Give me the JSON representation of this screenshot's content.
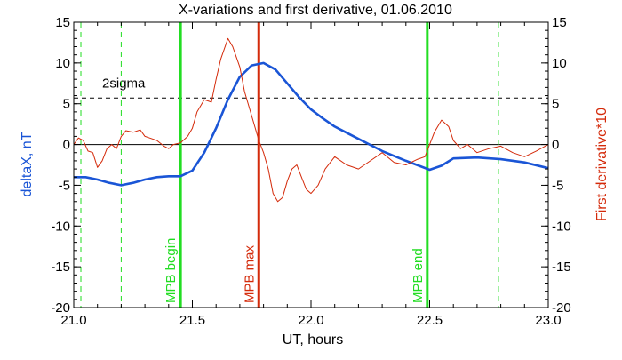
{
  "chart_data": {
    "type": "line",
    "title": "X-variations and first derivative, 01.06.2010",
    "xlabel": "UT, hours",
    "ylabel_left": "deltaX, nT",
    "ylabel_right": "First derivative*10",
    "xlim": [
      21.0,
      23.0
    ],
    "ylim": [
      -20,
      15
    ],
    "ylim_right": [
      -20,
      15
    ],
    "x_ticks": [
      21.0,
      21.5,
      22.0,
      22.5,
      23.0
    ],
    "x_tick_labels": [
      "21.0",
      "21.5",
      "22.0",
      "22.5",
      "23.0"
    ],
    "y_ticks": [
      -20,
      -15,
      -10,
      -5,
      0,
      5,
      10,
      15
    ],
    "y_tick_labels": [
      "-20",
      "-15",
      "-10",
      "-5",
      "0",
      "5",
      "10",
      "15"
    ],
    "grid": false,
    "colors": {
      "deltaX": "#1a55d6",
      "derivative": "#d42a0a",
      "mpb_edge": "#22dd22",
      "mpb_max": "#d42a0a",
      "reference": "#000000"
    },
    "series": [
      {
        "key": "deltaX",
        "axis": "left",
        "x": [
          21.0,
          21.05,
          21.1,
          21.15,
          21.2,
          21.25,
          21.3,
          21.35,
          21.4,
          21.45,
          21.5,
          21.55,
          21.6,
          21.65,
          21.7,
          21.75,
          21.8,
          21.85,
          21.9,
          21.95,
          22.0,
          22.05,
          22.1,
          22.2,
          22.3,
          22.4,
          22.5,
          22.55,
          22.6,
          22.7,
          22.8,
          22.9,
          23.0
        ],
        "values": [
          -4.0,
          -4.0,
          -4.3,
          -4.7,
          -5.0,
          -4.7,
          -4.3,
          -4.0,
          -3.9,
          -3.9,
          -3.2,
          -1.0,
          2.0,
          5.5,
          8.3,
          9.7,
          10.0,
          9.2,
          7.5,
          5.8,
          4.3,
          3.2,
          2.2,
          0.7,
          -0.8,
          -2.0,
          -3.1,
          -2.6,
          -1.7,
          -1.6,
          -1.8,
          -2.2,
          -2.9
        ]
      },
      {
        "key": "derivative",
        "axis": "right",
        "x": [
          21.0,
          21.02,
          21.04,
          21.06,
          21.08,
          21.1,
          21.12,
          21.14,
          21.16,
          21.18,
          21.2,
          21.22,
          21.25,
          21.28,
          21.3,
          21.32,
          21.35,
          21.38,
          21.4,
          21.42,
          21.45,
          21.48,
          21.5,
          21.52,
          21.55,
          21.58,
          21.6,
          21.62,
          21.65,
          21.67,
          21.7,
          21.72,
          21.75,
          21.78,
          21.8,
          21.82,
          21.84,
          21.86,
          21.88,
          21.9,
          21.92,
          21.94,
          21.96,
          21.98,
          22.0,
          22.03,
          22.06,
          22.1,
          22.15,
          22.2,
          22.25,
          22.3,
          22.35,
          22.4,
          22.45,
          22.48,
          22.5,
          22.52,
          22.55,
          22.58,
          22.6,
          22.63,
          22.66,
          22.7,
          22.75,
          22.8,
          22.85,
          22.9,
          22.95,
          23.0
        ],
        "values": [
          0.0,
          0.8,
          0.5,
          -0.8,
          -1.0,
          -2.8,
          -2.0,
          -0.5,
          0.0,
          -0.5,
          1.0,
          1.7,
          1.5,
          1.8,
          1.0,
          0.8,
          0.5,
          -0.2,
          -0.5,
          0.0,
          0.2,
          1.0,
          2.0,
          4.0,
          5.5,
          5.2,
          8.0,
          10.5,
          13.0,
          12.0,
          9.5,
          6.5,
          3.5,
          0.5,
          -1.0,
          -3.0,
          -6.0,
          -7.0,
          -6.5,
          -4.5,
          -3.0,
          -2.5,
          -4.0,
          -5.5,
          -6.0,
          -5.0,
          -3.0,
          -1.5,
          -2.5,
          -3.0,
          -2.0,
          -1.0,
          -2.2,
          -2.5,
          -1.8,
          -1.5,
          0.0,
          1.5,
          3.0,
          2.2,
          0.5,
          -0.5,
          0.0,
          -1.0,
          -0.5,
          -0.2,
          -1.0,
          -1.5,
          -0.8,
          0.0
        ]
      }
    ],
    "reference_lines": [
      {
        "y": 0,
        "style": "solid",
        "label": ""
      },
      {
        "y": 5.7,
        "style": "dashed",
        "label": "2sigma",
        "label_x": 21.12,
        "label_y": 7.0
      }
    ],
    "vertical_lines": [
      {
        "x": 21.03,
        "style": "dashed",
        "role": "edge-minor",
        "label": ""
      },
      {
        "x": 21.2,
        "style": "dashed",
        "role": "edge-minor",
        "label": ""
      },
      {
        "x": 21.45,
        "style": "solid",
        "role": "edge",
        "label": "MPB begin"
      },
      {
        "x": 21.78,
        "style": "solid",
        "role": "max",
        "label": "MPB max"
      },
      {
        "x": 22.49,
        "style": "solid",
        "role": "edge",
        "label": "MPB end"
      },
      {
        "x": 22.79,
        "style": "dashed",
        "role": "edge-minor",
        "label": ""
      }
    ]
  }
}
